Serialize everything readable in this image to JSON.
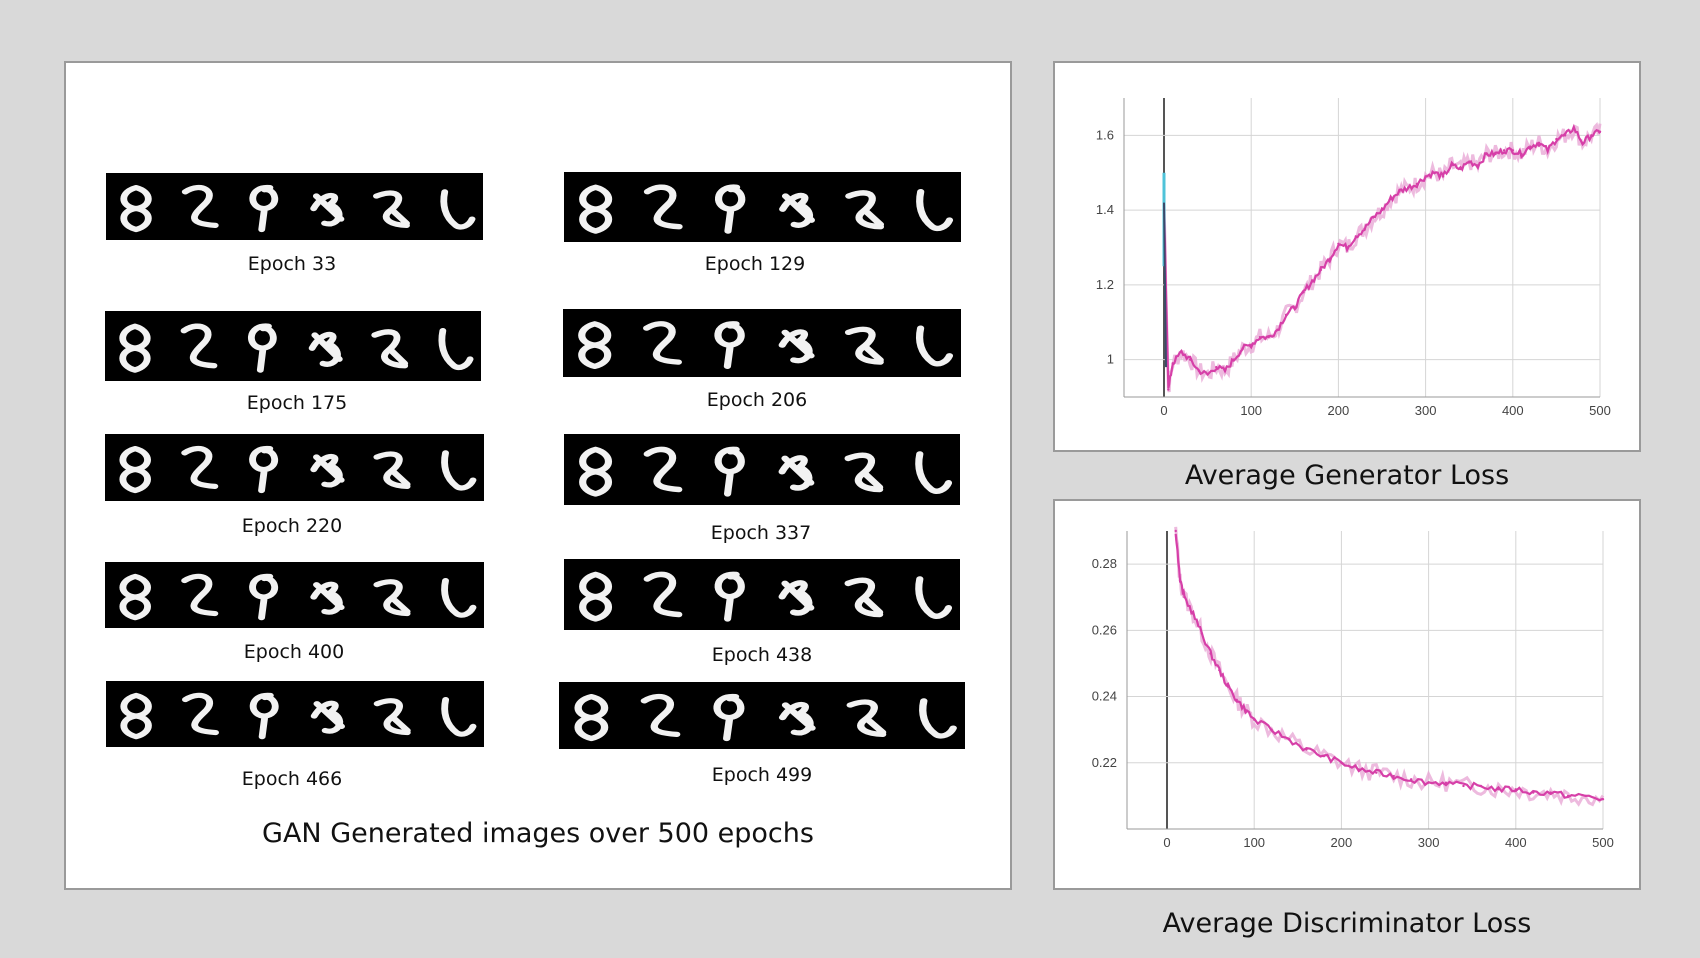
{
  "left": {
    "caption": "GAN Generated images over 500 epochs",
    "strips": [
      {
        "label": "Epoch 33"
      },
      {
        "label": "Epoch 129"
      },
      {
        "label": "Epoch 175"
      },
      {
        "label": "Epoch 206"
      },
      {
        "label": "Epoch 220"
      },
      {
        "label": "Epoch 337"
      },
      {
        "label": "Epoch 400"
      },
      {
        "label": "Epoch 438"
      },
      {
        "label": "Epoch 466"
      },
      {
        "label": "Epoch 499"
      }
    ]
  },
  "chart_data": [
    {
      "type": "line",
      "caption": "Average Generator Loss",
      "xlim": [
        0,
        500
      ],
      "ylim": [
        0.9,
        1.7
      ],
      "xticks": [
        0,
        100,
        200,
        300,
        400,
        500
      ],
      "yticks": [
        1,
        1.2,
        1.4,
        1.6
      ],
      "ytick_labels": [
        "1",
        "1.2",
        "1.4",
        "1.6"
      ],
      "grid": true,
      "colors": {
        "line": "#d63fa8",
        "band": "#e8a9d6",
        "start": "#4fc3d9",
        "axis": "#555555"
      },
      "x": [
        0,
        5,
        10,
        20,
        30,
        40,
        50,
        60,
        70,
        80,
        90,
        100,
        110,
        120,
        130,
        140,
        150,
        160,
        170,
        180,
        190,
        200,
        210,
        220,
        230,
        240,
        250,
        260,
        270,
        280,
        290,
        300,
        310,
        320,
        330,
        340,
        350,
        360,
        370,
        380,
        390,
        400,
        410,
        420,
        430,
        440,
        450,
        460,
        470,
        480,
        490,
        500
      ],
      "y": [
        1.42,
        0.92,
        0.99,
        1.02,
        1.0,
        0.97,
        0.96,
        0.98,
        0.97,
        1.0,
        1.03,
        1.04,
        1.06,
        1.06,
        1.08,
        1.12,
        1.14,
        1.18,
        1.21,
        1.24,
        1.27,
        1.31,
        1.3,
        1.33,
        1.35,
        1.38,
        1.4,
        1.43,
        1.45,
        1.46,
        1.47,
        1.49,
        1.5,
        1.49,
        1.52,
        1.51,
        1.53,
        1.52,
        1.55,
        1.55,
        1.56,
        1.56,
        1.55,
        1.57,
        1.58,
        1.56,
        1.59,
        1.6,
        1.62,
        1.58,
        1.6,
        1.61
      ]
    },
    {
      "type": "line",
      "caption": "Average Discriminator Loss",
      "xlim": [
        0,
        500
      ],
      "ylim": [
        0.2,
        0.29
      ],
      "xticks": [
        0,
        100,
        200,
        300,
        400,
        500
      ],
      "yticks": [
        0.22,
        0.24,
        0.26,
        0.28
      ],
      "ytick_labels": [
        "0.22",
        "0.24",
        "0.26",
        "0.28"
      ],
      "grid": true,
      "colors": {
        "line": "#d63fa8",
        "band": "#e8a9d6",
        "axis": "#555555"
      },
      "x": [
        10,
        15,
        20,
        30,
        40,
        50,
        60,
        70,
        80,
        90,
        100,
        120,
        140,
        160,
        180,
        200,
        220,
        240,
        260,
        280,
        300,
        320,
        340,
        360,
        380,
        400,
        420,
        440,
        460,
        480,
        500
      ],
      "y": [
        0.29,
        0.275,
        0.27,
        0.265,
        0.259,
        0.253,
        0.248,
        0.243,
        0.239,
        0.236,
        0.233,
        0.23,
        0.227,
        0.224,
        0.222,
        0.22,
        0.218,
        0.217,
        0.216,
        0.215,
        0.214,
        0.214,
        0.213,
        0.213,
        0.212,
        0.212,
        0.211,
        0.211,
        0.21,
        0.21,
        0.209
      ]
    }
  ]
}
